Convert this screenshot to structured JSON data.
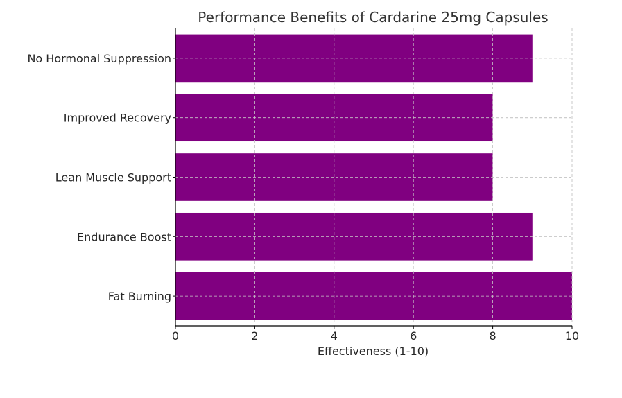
{
  "chart_data": {
    "type": "bar",
    "orientation": "horizontal",
    "title": "Performance Benefits of Cardarine 25mg Capsules",
    "xlabel": "Effectiveness (1-10)",
    "ylabel": "",
    "categories": [
      "Fat Burning",
      "Endurance Boost",
      "Lean Muscle Support",
      "Improved Recovery",
      "No Hormonal Suppression"
    ],
    "values": [
      10,
      9,
      8,
      8,
      9
    ],
    "xlim": [
      0,
      10
    ],
    "xticks": [
      0,
      2,
      4,
      6,
      8,
      10
    ],
    "grid": true,
    "bar_color": "#800080",
    "grid_color": "#c8c8c8"
  }
}
